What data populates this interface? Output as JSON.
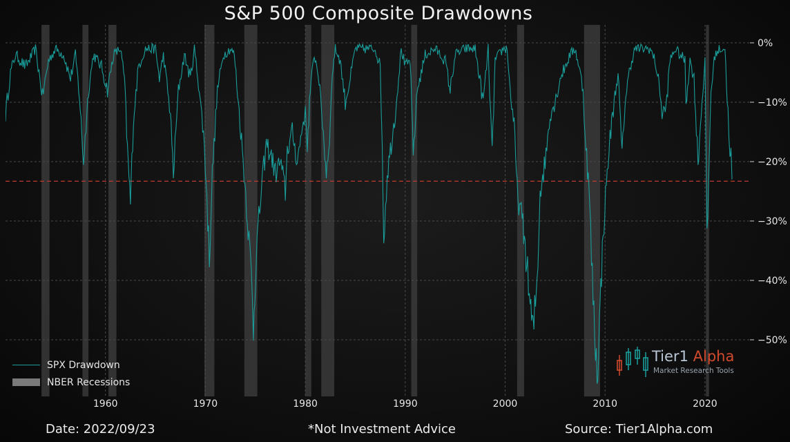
{
  "title": "S&P 500 Composite Drawdowns",
  "footer": {
    "date": "Date: 2022/09/23",
    "disclaimer": "*Not Investment Advice",
    "source": "Source: Tier1Alpha.com"
  },
  "logo": {
    "brand_primary": "Tier1",
    "brand_accent": "Alpha",
    "subtitle": "Market Research Tools"
  },
  "colors": {
    "line": "#1a9e9b",
    "recession": "#3a3a3a",
    "reference_line": "#c0392b",
    "grid": "#4a4a4a",
    "accent": "#d24a2c"
  },
  "chart_data": {
    "type": "line",
    "title": "S&P 500 Composite Drawdowns",
    "xlim": [
      1950,
      2024.5
    ],
    "ylim": [
      -60,
      3
    ],
    "y_axis_side": "right",
    "y_ticks": [
      0,
      -10,
      -20,
      -30,
      -40,
      -50
    ],
    "y_tick_labels": [
      "0%",
      "−10%",
      "−20%",
      "−30%",
      "−40%",
      "−50%"
    ],
    "x_ticks": [
      1960,
      1970,
      1980,
      1990,
      2000,
      2010,
      2020
    ],
    "x_tick_labels": [
      "1960",
      "1970",
      "1980",
      "1990",
      "2000",
      "2010",
      "2020"
    ],
    "grid": true,
    "legend_position": "bottom-left",
    "reference_line": {
      "y": -23.3,
      "style": "dashed"
    },
    "recessions": [
      [
        1953.6,
        1954.4
      ],
      [
        1957.7,
        1958.3
      ],
      [
        1960.3,
        1961.1
      ],
      [
        1969.9,
        1970.9
      ],
      [
        1973.9,
        1975.2
      ],
      [
        1980.0,
        1980.6
      ],
      [
        1981.6,
        1982.9
      ],
      [
        1990.6,
        1991.2
      ],
      [
        2001.2,
        2001.9
      ],
      [
        2007.9,
        2009.5
      ],
      [
        2020.1,
        2020.4
      ]
    ],
    "series": [
      {
        "name": "SPX Drawdown",
        "x": [
          1950.0,
          1950.5,
          1951.0,
          1952.0,
          1953.0,
          1953.7,
          1954.3,
          1955.0,
          1955.8,
          1956.5,
          1957.0,
          1957.4,
          1957.8,
          1958.3,
          1958.8,
          1959.6,
          1960.2,
          1960.8,
          1961.5,
          1961.9,
          1962.2,
          1962.5,
          1962.8,
          1963.3,
          1964.0,
          1965.0,
          1965.4,
          1965.8,
          1966.5,
          1966.8,
          1967.3,
          1967.9,
          1968.5,
          1968.9,
          1969.4,
          1969.9,
          1970.4,
          1970.7,
          1971.2,
          1971.8,
          1972.5,
          1972.9,
          1973.3,
          1973.7,
          1974.2,
          1974.6,
          1974.8,
          1975.1,
          1975.6,
          1976.1,
          1976.6,
          1977.0,
          1977.5,
          1978.0,
          1978.2,
          1978.7,
          1979.2,
          1979.8,
          1980.0,
          1980.2,
          1980.5,
          1980.9,
          1981.3,
          1981.8,
          1982.1,
          1982.5,
          1982.7,
          1983.0,
          1983.5,
          1984.0,
          1984.5,
          1985.0,
          1986.0,
          1987.0,
          1987.5,
          1987.7,
          1987.85,
          1988.2,
          1989.0,
          1989.6,
          1990.0,
          1990.5,
          1990.8,
          1991.2,
          1992.0,
          1993.0,
          1994.0,
          1994.5,
          1995.0,
          1996.0,
          1997.0,
          1997.8,
          1998.3,
          1998.7,
          1999.0,
          1999.8,
          2000.2,
          2000.5,
          2000.9,
          2001.2,
          2001.7,
          2002.0,
          2002.5,
          2002.8,
          2003.2,
          2003.5,
          2004.0,
          2004.5,
          2005.0,
          2005.5,
          2006.0,
          2006.5,
          2007.0,
          2007.4,
          2007.8,
          2008.0,
          2008.4,
          2008.8,
          2009.2,
          2009.5,
          2009.8,
          2010.3,
          2010.5,
          2010.9,
          2011.3,
          2011.7,
          2012.0,
          2012.5,
          2013.0,
          2014.0,
          2014.5,
          2015.0,
          2015.5,
          2015.7,
          2016.1,
          2016.5,
          2017.0,
          2018.0,
          2018.1,
          2018.5,
          2018.9,
          2019.3,
          2019.7,
          2020.0,
          2020.2,
          2020.6,
          2021.0,
          2021.5,
          2022.0,
          2022.3,
          2022.5,
          2022.6,
          2022.7
        ]
      },
      {
        "name": "NBER Recessions",
        "note": "shaded bands"
      }
    ],
    "y": [
      -12,
      -5,
      -2,
      -4,
      -1,
      -9,
      -3,
      -1,
      -2,
      -6,
      -2,
      -9,
      -20,
      -8,
      -2,
      -4,
      -8,
      -2,
      -1,
      -6,
      -18,
      -27,
      -13,
      -4,
      -1,
      -1,
      -6,
      -2,
      -12,
      -22,
      -8,
      -2,
      -6,
      -1,
      -8,
      -17,
      -36,
      -22,
      -8,
      -2,
      -1,
      -2,
      -10,
      -18,
      -29,
      -39,
      -48,
      -35,
      -25,
      -17,
      -19,
      -22,
      -20,
      -25,
      -18,
      -15,
      -20,
      -13,
      -12,
      -17,
      -8,
      -2,
      -5,
      -15,
      -22,
      -14,
      -5,
      -1,
      -3,
      -10,
      -6,
      -1,
      -1,
      -1,
      -4,
      -17,
      -33,
      -22,
      -12,
      -1,
      -4,
      -3,
      -19,
      -8,
      -2,
      -1,
      -3,
      -8,
      -2,
      -1,
      -1,
      -10,
      -1,
      -19,
      -3,
      -1,
      -1,
      -8,
      -14,
      -25,
      -30,
      -34,
      -44,
      -49,
      -40,
      -25,
      -20,
      -12,
      -10,
      -6,
      -4,
      -2,
      -1,
      -4,
      -8,
      -15,
      -25,
      -43,
      -56,
      -45,
      -32,
      -20,
      -16,
      -10,
      -5,
      -19,
      -10,
      -4,
      -1,
      -1,
      -1,
      -3,
      -8,
      -12,
      -11,
      -3,
      -1,
      -3,
      -10,
      -3,
      -6,
      -20,
      -10,
      -3,
      -34,
      -8,
      -2,
      -1,
      -1,
      -12,
      -20,
      -19,
      -23
    ]
  }
}
